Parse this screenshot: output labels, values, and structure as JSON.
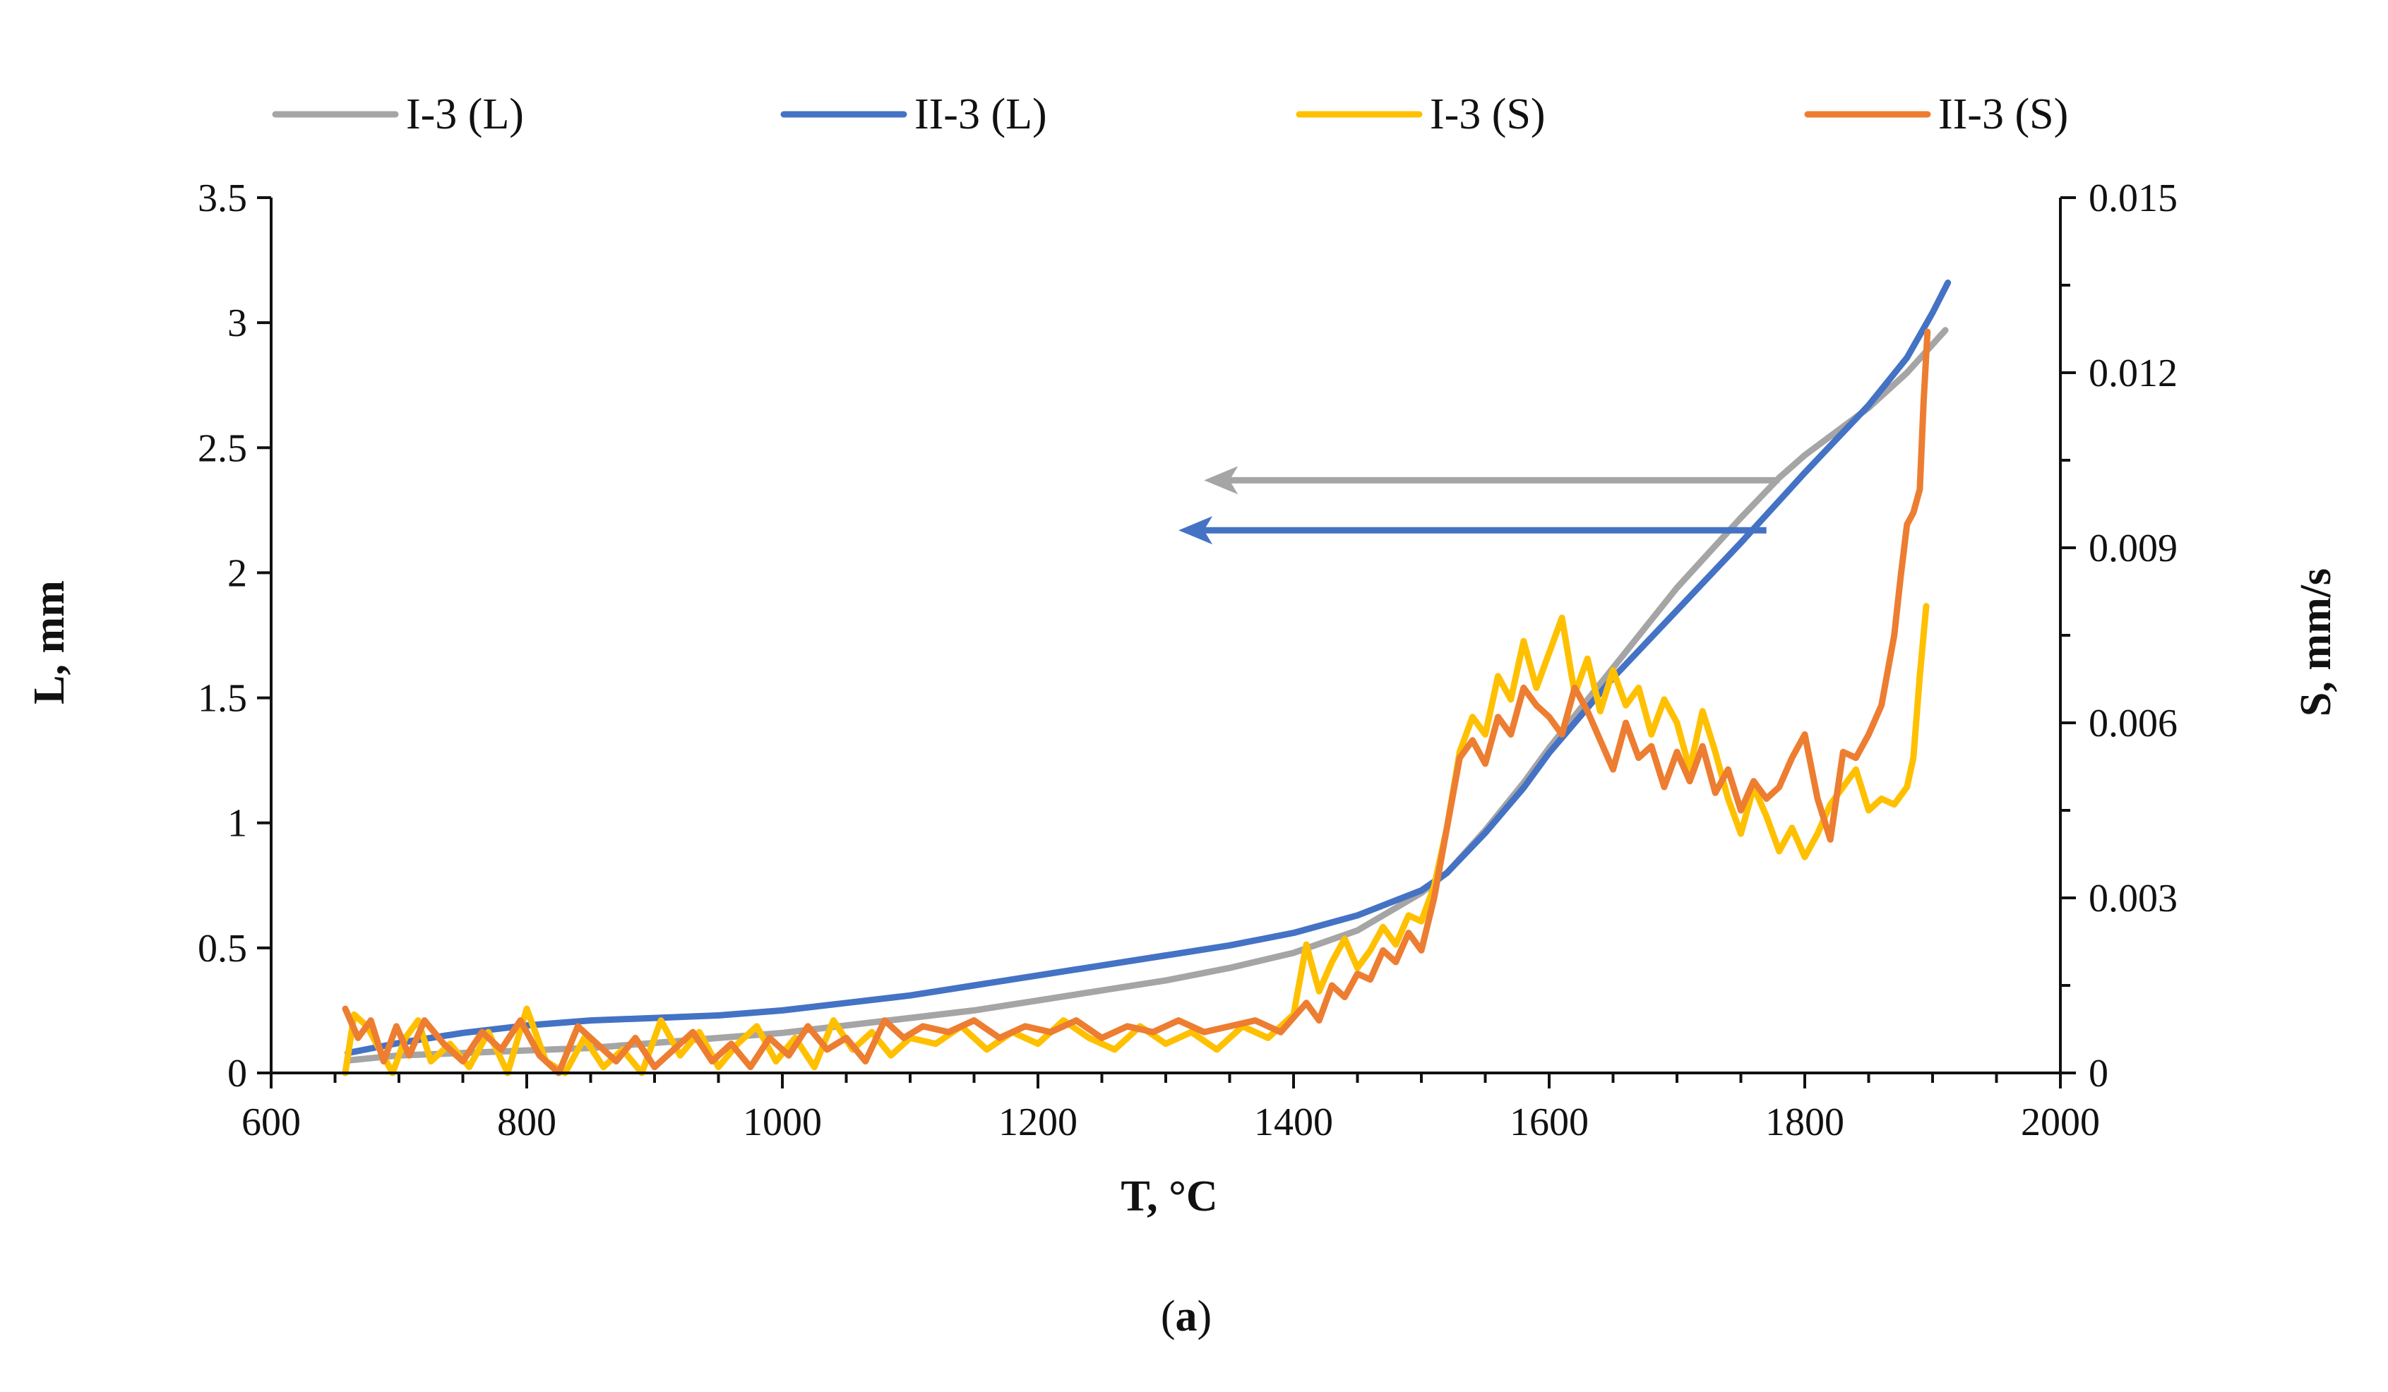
{
  "chart_data": {
    "type": "line",
    "title": "",
    "caption_label": "a",
    "xlabel": "T, °C",
    "ylabel": "L, mm",
    "y2label": "S, mm/s",
    "xlim": [
      600,
      2000
    ],
    "ylim": [
      0,
      3.5
    ],
    "y2lim": [
      0,
      0.015
    ],
    "x_ticks": [
      600,
      800,
      1000,
      1200,
      1400,
      1600,
      1800,
      2000
    ],
    "x_tick_labels": [
      "600",
      "800",
      "1000",
      "1200",
      "1400",
      "1600",
      "1800",
      "2000"
    ],
    "y_ticks": [
      0,
      0.5,
      1,
      1.5,
      2,
      2.5,
      3,
      3.5
    ],
    "y_tick_labels": [
      "0",
      "0.5",
      "1",
      "1.5",
      "2",
      "2.5",
      "3",
      "3.5"
    ],
    "y2_ticks": [
      0,
      0.003,
      0.006,
      0.009,
      0.012,
      0.015
    ],
    "y2_tick_labels": [
      "0",
      "0.003",
      "0.006",
      "0.009",
      "0.012",
      "0.015"
    ],
    "legend_position": "top",
    "series": [
      {
        "name": "I-3 (L)",
        "axis": "left",
        "color": "#a5a5a5",
        "x": [
          660,
          700,
          750,
          800,
          850,
          900,
          950,
          1000,
          1050,
          1100,
          1150,
          1200,
          1250,
          1300,
          1350,
          1400,
          1450,
          1500,
          1520,
          1550,
          1580,
          1600,
          1650,
          1700,
          1750,
          1780,
          1800,
          1850,
          1880,
          1910
        ],
        "values": [
          0.05,
          0.07,
          0.08,
          0.09,
          0.1,
          0.12,
          0.14,
          0.16,
          0.19,
          0.22,
          0.25,
          0.29,
          0.33,
          0.37,
          0.42,
          0.48,
          0.57,
          0.72,
          0.8,
          0.97,
          1.16,
          1.3,
          1.62,
          1.94,
          2.22,
          2.38,
          2.47,
          2.66,
          2.8,
          2.97
        ]
      },
      {
        "name": "II-3 (L)",
        "axis": "left",
        "color": "#4472c4",
        "x": [
          660,
          700,
          750,
          800,
          850,
          900,
          950,
          1000,
          1050,
          1100,
          1150,
          1200,
          1250,
          1300,
          1350,
          1400,
          1450,
          1500,
          1520,
          1550,
          1580,
          1600,
          1650,
          1700,
          1750,
          1800,
          1850,
          1880,
          1900,
          1912
        ],
        "values": [
          0.08,
          0.12,
          0.16,
          0.19,
          0.21,
          0.22,
          0.23,
          0.25,
          0.28,
          0.31,
          0.35,
          0.39,
          0.43,
          0.47,
          0.51,
          0.56,
          0.63,
          0.73,
          0.8,
          0.96,
          1.14,
          1.28,
          1.58,
          1.85,
          2.12,
          2.4,
          2.67,
          2.86,
          3.04,
          3.16
        ]
      },
      {
        "name": "I-3 (S)",
        "axis": "right",
        "color": "#ffc000",
        "x": [
          658,
          665,
          675,
          685,
          695,
          705,
          715,
          725,
          740,
          755,
          770,
          785,
          800,
          815,
          830,
          845,
          860,
          875,
          890,
          905,
          920,
          935,
          950,
          965,
          980,
          995,
          1010,
          1025,
          1040,
          1055,
          1070,
          1085,
          1100,
          1120,
          1140,
          1160,
          1180,
          1200,
          1220,
          1240,
          1260,
          1280,
          1300,
          1320,
          1340,
          1360,
          1380,
          1400,
          1410,
          1420,
          1430,
          1440,
          1450,
          1460,
          1470,
          1480,
          1490,
          1500,
          1510,
          1520,
          1530,
          1540,
          1550,
          1560,
          1570,
          1580,
          1590,
          1600,
          1610,
          1620,
          1630,
          1640,
          1650,
          1660,
          1670,
          1680,
          1690,
          1700,
          1710,
          1720,
          1730,
          1740,
          1750,
          1760,
          1770,
          1780,
          1790,
          1800,
          1810,
          1820,
          1830,
          1840,
          1850,
          1860,
          1870,
          1880,
          1885,
          1890,
          1895
        ],
        "values": [
          0.0,
          0.001,
          0.0008,
          0.0004,
          0.0,
          0.0006,
          0.0009,
          0.0002,
          0.0005,
          0.0001,
          0.0007,
          0.0,
          0.0011,
          0.0002,
          0.0,
          0.0006,
          0.0001,
          0.0004,
          0.0,
          0.0009,
          0.0003,
          0.0007,
          0.0001,
          0.0005,
          0.0008,
          0.0002,
          0.0006,
          0.0001,
          0.0009,
          0.0004,
          0.0007,
          0.0003,
          0.0006,
          0.0005,
          0.0008,
          0.0004,
          0.0007,
          0.0005,
          0.0009,
          0.0006,
          0.0004,
          0.0008,
          0.0005,
          0.0007,
          0.0004,
          0.0008,
          0.0006,
          0.001,
          0.0022,
          0.0014,
          0.0019,
          0.0023,
          0.0018,
          0.0021,
          0.0025,
          0.0022,
          0.0027,
          0.0026,
          0.0032,
          0.0042,
          0.0055,
          0.0061,
          0.0058,
          0.0068,
          0.0064,
          0.0074,
          0.0066,
          0.0072,
          0.0078,
          0.0065,
          0.0071,
          0.0062,
          0.0069,
          0.0063,
          0.0066,
          0.0058,
          0.0064,
          0.006,
          0.0052,
          0.0062,
          0.0055,
          0.0047,
          0.0041,
          0.0049,
          0.0044,
          0.0038,
          0.0042,
          0.0037,
          0.0041,
          0.0046,
          0.0049,
          0.0052,
          0.0045,
          0.0047,
          0.0046,
          0.0049,
          0.0054,
          0.0068,
          0.008
        ]
      },
      {
        "name": "II-3 (S)",
        "axis": "right",
        "color": "#ed7d31",
        "x": [
          658,
          668,
          678,
          688,
          698,
          708,
          720,
          735,
          750,
          765,
          780,
          795,
          810,
          825,
          840,
          855,
          870,
          885,
          900,
          915,
          930,
          945,
          960,
          975,
          990,
          1005,
          1020,
          1035,
          1050,
          1065,
          1080,
          1095,
          1110,
          1130,
          1150,
          1170,
          1190,
          1210,
          1230,
          1250,
          1270,
          1290,
          1310,
          1330,
          1350,
          1370,
          1390,
          1410,
          1420,
          1430,
          1440,
          1450,
          1460,
          1470,
          1480,
          1490,
          1500,
          1510,
          1520,
          1530,
          1540,
          1550,
          1560,
          1570,
          1580,
          1590,
          1600,
          1610,
          1620,
          1630,
          1640,
          1650,
          1660,
          1670,
          1680,
          1690,
          1700,
          1710,
          1720,
          1730,
          1740,
          1750,
          1760,
          1770,
          1780,
          1790,
          1800,
          1810,
          1820,
          1830,
          1840,
          1850,
          1860,
          1870,
          1875,
          1880,
          1885,
          1890,
          1893,
          1896
        ],
        "values": [
          0.0011,
          0.0006,
          0.0009,
          0.0002,
          0.0008,
          0.0003,
          0.0009,
          0.0005,
          0.0002,
          0.0007,
          0.0004,
          0.0009,
          0.0003,
          0.0,
          0.0008,
          0.0005,
          0.0002,
          0.0006,
          0.0001,
          0.0004,
          0.0007,
          0.0002,
          0.0005,
          0.0001,
          0.0006,
          0.0003,
          0.0008,
          0.0004,
          0.0006,
          0.0002,
          0.0009,
          0.0006,
          0.0008,
          0.0007,
          0.0009,
          0.0006,
          0.0008,
          0.0007,
          0.0009,
          0.0006,
          0.0008,
          0.0007,
          0.0009,
          0.0007,
          0.0008,
          0.0009,
          0.0007,
          0.0012,
          0.0009,
          0.0015,
          0.0013,
          0.0017,
          0.0016,
          0.0021,
          0.0019,
          0.0024,
          0.0021,
          0.003,
          0.0042,
          0.0054,
          0.0057,
          0.0053,
          0.0061,
          0.0058,
          0.0066,
          0.0063,
          0.0061,
          0.0058,
          0.0066,
          0.0062,
          0.0057,
          0.0052,
          0.006,
          0.0054,
          0.0056,
          0.0049,
          0.0055,
          0.005,
          0.0056,
          0.0048,
          0.0052,
          0.0045,
          0.005,
          0.0047,
          0.0049,
          0.0054,
          0.0058,
          0.0047,
          0.004,
          0.0055,
          0.0054,
          0.0058,
          0.0063,
          0.0075,
          0.0085,
          0.0094,
          0.0096,
          0.01,
          0.0115,
          0.0127
        ]
      }
    ],
    "annotations": [
      {
        "type": "arrow",
        "series": "I-3 (L)",
        "points_to": "left-axis",
        "from": [
          1780,
          2.37
        ],
        "to": [
          1330,
          2.37
        ]
      },
      {
        "type": "arrow",
        "series": "II-3 (L)",
        "points_to": "left-axis",
        "from": [
          1770,
          2.17
        ],
        "to": [
          1310,
          2.17
        ]
      }
    ]
  }
}
